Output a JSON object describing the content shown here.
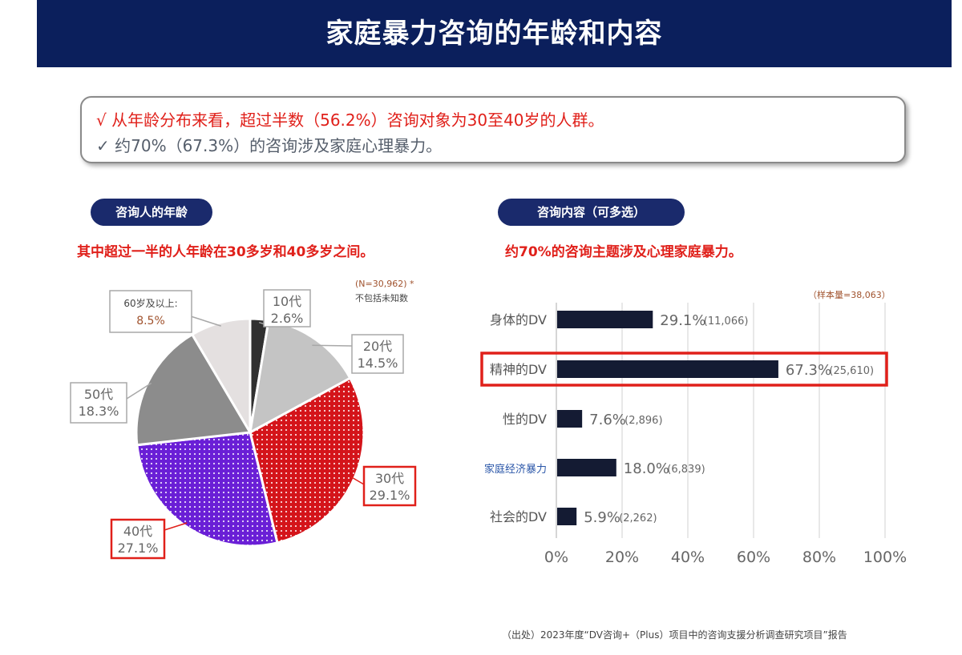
{
  "header": {
    "title": "家庭暴力咨询的年龄和内容"
  },
  "summary": {
    "line1": "√ 从年龄分布来看，超过半数（56.2%）咨询对象为30至40岁的人群。",
    "line2": "✓ 约70%（67.3%）的咨询涉及家庭心理暴力。"
  },
  "left_panel": {
    "pill": "咨询人的年龄",
    "subtitle": "其中超过一半的人年龄在30多岁和40多岁之间。"
  },
  "right_panel": {
    "pill": "咨询内容（可多选）",
    "subtitle": "约70%的咨询主题涉及心理家庭暴力。"
  },
  "footnote": "（出处）2023年度“DV咨询+（Plus）项目中的咨询支援分析调查研究项目”报告",
  "colors": {
    "header_bg": "#0b1f5c",
    "pill_bg": "#1a2a6c",
    "accent_red": "#e0201a",
    "bar": "#141b33",
    "highlight_border": "#e0201a",
    "slice_30s": "#d4141a",
    "slice_40s": "#6a1fd6"
  },
  "chart_data": [
    {
      "type": "pie",
      "note_n": "(N=30,962) *",
      "note_excl": "不包括未知数",
      "slices": [
        {
          "label": "10代",
          "value": 2.6,
          "value_label": "2.6%",
          "color": "#303030",
          "pattern": "none",
          "highlight": false
        },
        {
          "label": "20代",
          "value": 14.5,
          "value_label": "14.5%",
          "color": "#c4c4c4",
          "pattern": "none",
          "highlight": false
        },
        {
          "label": "30代",
          "value": 29.1,
          "value_label": "29.1%",
          "color": "#d4141a",
          "pattern": "dots",
          "highlight": true
        },
        {
          "label": "40代",
          "value": 27.1,
          "value_label": "27.1%",
          "color": "#6a1fd6",
          "pattern": "dots",
          "highlight": true
        },
        {
          "label": "50代",
          "value": 18.3,
          "value_label": "18.3%",
          "color": "#8c8c8c",
          "pattern": "none",
          "highlight": false
        },
        {
          "label": "60岁及以上:",
          "value": 8.5,
          "value_label": "8.5%",
          "color": "#e4e0e0",
          "pattern": "none",
          "highlight": false
        }
      ]
    },
    {
      "type": "bar",
      "orientation": "horizontal",
      "sample_note": "（样本量=38,063）",
      "categories": [
        "身体的DV",
        "精神的DV",
        "性的DV",
        "家庭经济暴力",
        "社会的DV"
      ],
      "values": [
        29.1,
        67.3,
        7.6,
        18.0,
        5.9
      ],
      "value_labels": [
        "29.1%",
        "67.3%",
        "7.6%",
        "18.0%",
        "5.9%"
      ],
      "counts": [
        "(11,066)",
        "(25,610)",
        "(2,896)",
        "(6,839)",
        "(2,262)"
      ],
      "highlight_index": 1,
      "xlim": [
        0,
        100
      ],
      "xticks": [
        "0%",
        "20%",
        "40%",
        "60%",
        "80%",
        "100%"
      ],
      "grid": true
    }
  ]
}
